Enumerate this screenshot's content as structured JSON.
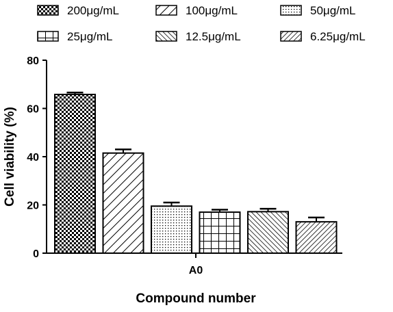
{
  "chart_data": {
    "type": "bar",
    "title": "",
    "xlabel": "Compound number",
    "ylabel": "Cell viability (%)",
    "ylim": [
      0,
      80
    ],
    "yticks": [
      0,
      20,
      40,
      60,
      80
    ],
    "categories": [
      "A0"
    ],
    "series": [
      {
        "name": "200μg/mL",
        "values": [
          65.8
        ],
        "error": [
          0.8
        ],
        "pattern": "checker"
      },
      {
        "name": "100μg/mL",
        "values": [
          41.5
        ],
        "error": [
          1.5
        ],
        "pattern": "diag-down"
      },
      {
        "name": "50μg/mL",
        "values": [
          19.5
        ],
        "error": [
          1.5
        ],
        "pattern": "dots"
      },
      {
        "name": "25μg/mL",
        "values": [
          17.0
        ],
        "error": [
          1.0
        ],
        "pattern": "grid"
      },
      {
        "name": "12.5μg/mL",
        "values": [
          17.2
        ],
        "error": [
          1.2
        ],
        "pattern": "diag-up"
      },
      {
        "name": "6.25μg/mL",
        "values": [
          13.0
        ],
        "error": [
          1.8
        ],
        "pattern": "diag-down-dense"
      }
    ],
    "legend_position": "top",
    "grid": false
  }
}
